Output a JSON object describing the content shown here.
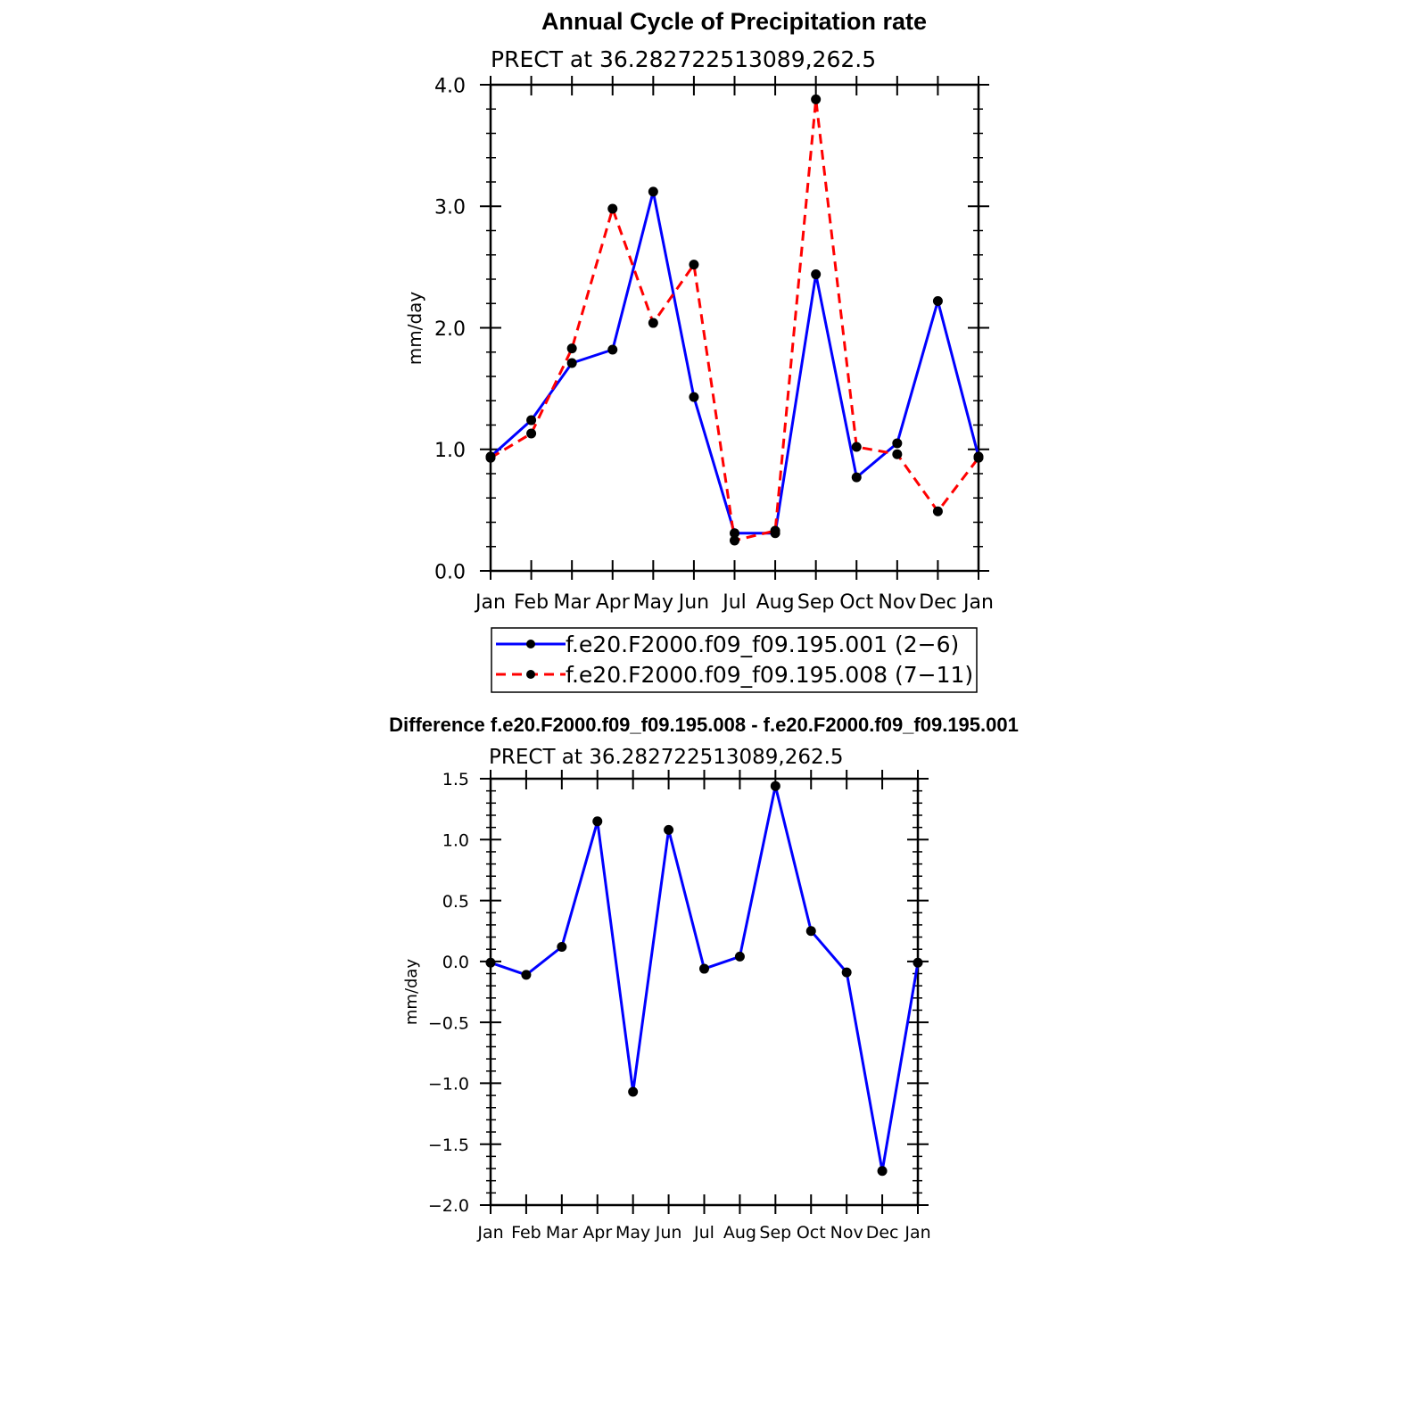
{
  "chart_data": [
    {
      "type": "line",
      "title": "Annual Cycle of Precipitation rate",
      "subtitle": "PRECT  at  36.282722513089,262.5",
      "ylabel": "mm/day",
      "xlabel": "",
      "ylim": [
        0.0,
        4.0
      ],
      "yticks": [
        0.0,
        1.0,
        2.0,
        3.0,
        4.0
      ],
      "ytick_labels": [
        "0.0",
        "1.0",
        "2.0",
        "3.0",
        "4.0"
      ],
      "categories": [
        "Jan",
        "Feb",
        "Mar",
        "Apr",
        "May",
        "Jun",
        "Jul",
        "Aug",
        "Sep",
        "Oct",
        "Nov",
        "Dec",
        "Jan"
      ],
      "series": [
        {
          "name": "f.e20.F2000.f09_f09.195.001 (2−6)",
          "color": "#0000ff",
          "dash": "solid",
          "values": [
            0.94,
            1.24,
            1.71,
            1.82,
            3.12,
            1.43,
            0.31,
            0.31,
            2.44,
            0.77,
            1.05,
            2.22,
            0.94
          ]
        },
        {
          "name": "f.e20.F2000.f09_f09.195.008 (7−11)",
          "color": "#ff0000",
          "dash": "dashed",
          "values": [
            0.93,
            1.13,
            1.83,
            2.98,
            2.04,
            2.52,
            0.25,
            0.33,
            3.88,
            1.02,
            0.96,
            0.49,
            0.93
          ]
        }
      ],
      "legend": "below"
    },
    {
      "type": "line",
      "title": "Difference f.e20.F2000.f09_f09.195.008 - f.e20.F2000.f09_f09.195.001",
      "subtitle": "PRECT  at  36.282722513089,262.5",
      "ylabel": "mm/day",
      "xlabel": "",
      "ylim": [
        -2.0,
        1.5
      ],
      "yticks": [
        -2.0,
        -1.5,
        -1.0,
        -0.5,
        0.0,
        0.5,
        1.0,
        1.5
      ],
      "ytick_labels": [
        "−2.0",
        "−1.5",
        "−1.0",
        "−0.5",
        "0.0",
        "0.5",
        "1.0",
        "1.5"
      ],
      "categories": [
        "Jan",
        "Feb",
        "Mar",
        "Apr",
        "May",
        "Jun",
        "Jul",
        "Aug",
        "Sep",
        "Oct",
        "Nov",
        "Dec",
        "Jan"
      ],
      "series": [
        {
          "name": "difference",
          "color": "#0000ff",
          "dash": "solid",
          "values": [
            -0.01,
            -0.11,
            0.12,
            1.15,
            -1.07,
            1.08,
            -0.06,
            0.04,
            1.44,
            0.25,
            -0.09,
            -1.72,
            -0.01
          ]
        }
      ]
    }
  ]
}
